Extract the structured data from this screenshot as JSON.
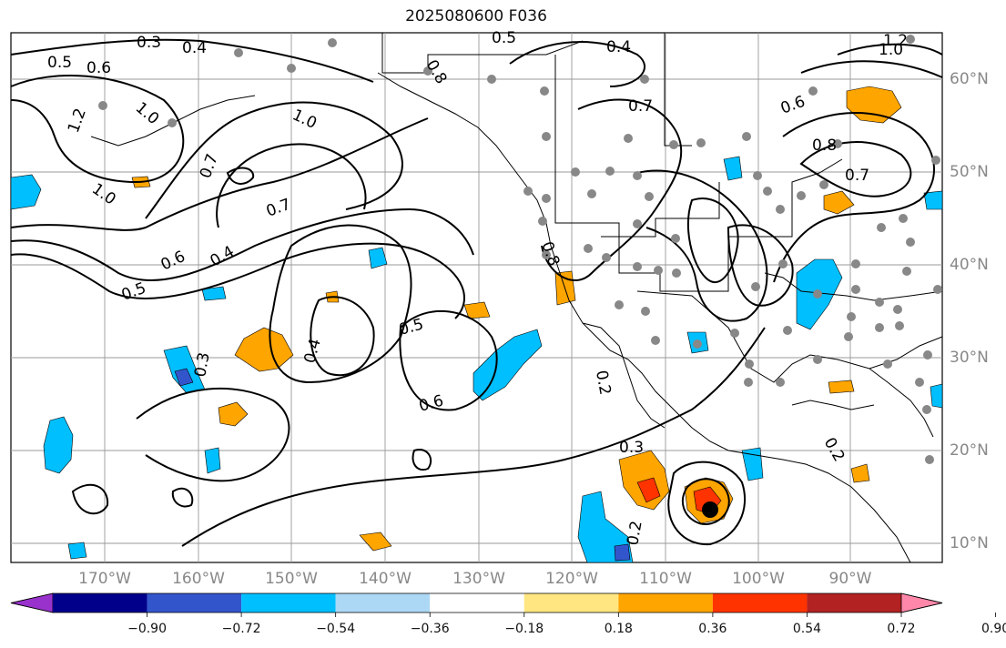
{
  "title": "2025080600 F036",
  "longitude_labels": [
    "170°W",
    "160°W",
    "150°W",
    "140°W",
    "130°W",
    "120°W",
    "110°W",
    "100°W",
    "90°W"
  ],
  "latitude_labels": [
    "60°N",
    "50°N",
    "40°N",
    "30°N",
    "20°N",
    "10°N"
  ],
  "colorbar": {
    "ticks": [
      "−0.90",
      "−0.72",
      "−0.54",
      "−0.36",
      "−0.18",
      "0.18",
      "0.36",
      "0.54",
      "0.72",
      "0.90"
    ],
    "colors": [
      "#9932cc",
      "#00008b",
      "#3355cc",
      "#00bfff",
      "#add8f5",
      "#ffffff",
      "#ffe680",
      "#ffa500",
      "#ff3300",
      "#b22222",
      "#ff88aa"
    ]
  },
  "contour_labels": [
    "0.3",
    "0.4",
    "0.5",
    "0.6",
    "0.7",
    "0.8",
    "1.0",
    "1.2",
    "0.2"
  ],
  "colors": {
    "land_outline": "#000000",
    "grid": "#999999",
    "stations": "#888888"
  }
}
